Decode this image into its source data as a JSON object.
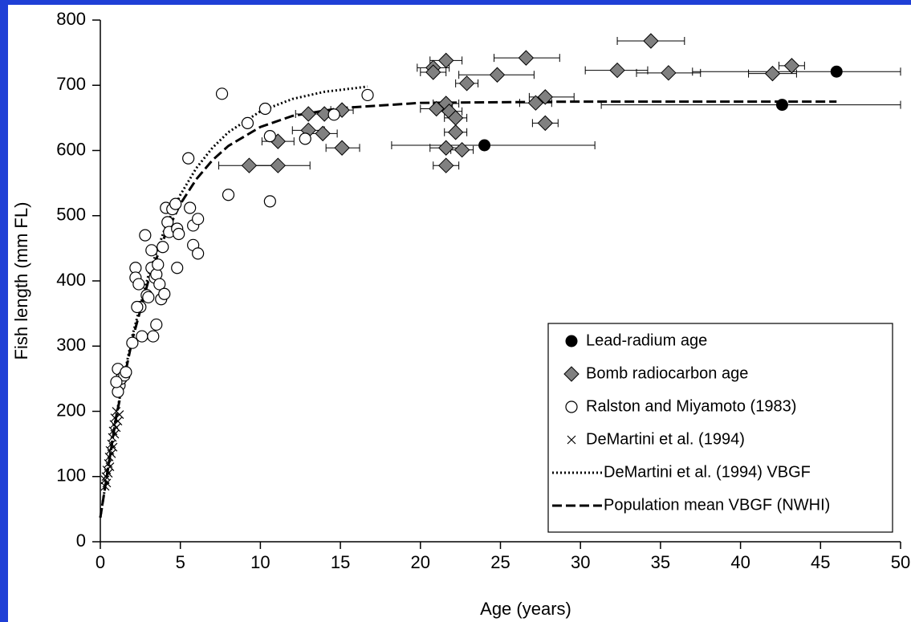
{
  "chart_data": {
    "type": "scatter",
    "x_label": "Age  (years)",
    "y_label": "Fish length (mm FL)",
    "xlim": [
      0,
      50
    ],
    "xticks": [
      0,
      5,
      10,
      15,
      20,
      25,
      30,
      35,
      40,
      45,
      50
    ],
    "ylim": [
      0,
      800
    ],
    "yticks": [
      0,
      100,
      200,
      300,
      400,
      500,
      600,
      700,
      800
    ],
    "legend": "lower right",
    "series": [
      {
        "name": "Lead-radium age",
        "marker": "circle-filled",
        "color": "#000000",
        "x": [
          24.0,
          42.6,
          46.0
        ],
        "values": [
          608,
          670,
          721
        ],
        "x_low": [
          18.2,
          31.3,
          37.0
        ],
        "x_high": [
          30.9,
          50,
          50
        ]
      },
      {
        "name": "Bomb radiocarbon age",
        "marker": "diamond",
        "color": "#808080",
        "x": [
          9.3,
          11.1,
          11.1,
          13.0,
          13.0,
          14.0,
          13.9,
          15.1,
          15.1,
          20.8,
          20.8,
          21.6,
          22.9,
          24.8,
          26.6,
          21.0,
          21.6,
          21.8,
          22.2,
          22.2,
          21.6,
          22.6,
          21.6,
          27.2,
          27.8,
          27.8,
          34.4,
          32.3,
          35.5,
          42.0,
          43.2
        ],
        "values": [
          577,
          577,
          614,
          656,
          631,
          656,
          626,
          662,
          604,
          727,
          720,
          738,
          703,
          716,
          742,
          664,
          672,
          660,
          650,
          628,
          604,
          601,
          577,
          673,
          682,
          642,
          768,
          723,
          719,
          718,
          730
        ],
        "x_low": [
          7.4,
          9.1,
          10.1,
          12.2,
          12.0,
          13.2,
          13.0,
          14.4,
          14.1,
          19.8,
          20.0,
          20.6,
          22.2,
          22.4,
          24.6,
          20.0,
          20.8,
          21.0,
          21.5,
          21.5,
          20.6,
          21.9,
          20.8,
          26.2,
          26.8,
          27.0,
          32.3,
          30.3,
          33.5,
          40.5,
          42.4
        ],
        "x_high": [
          11.2,
          13.1,
          12.1,
          13.8,
          14.0,
          14.8,
          14.8,
          15.8,
          16.2,
          21.8,
          21.6,
          22.6,
          23.6,
          27.1,
          28.7,
          22.0,
          22.4,
          22.6,
          22.9,
          22.9,
          22.6,
          23.3,
          22.4,
          28.2,
          29.6,
          28.6,
          36.5,
          34.2,
          37.5,
          43.5,
          44.0
        ]
      },
      {
        "name": "Ralston and Miyamoto (1983)",
        "marker": "circle-open",
        "color": "#000000",
        "x": [
          1.1,
          1.2,
          1.1,
          1.3,
          1.5,
          1.6,
          1.0,
          2.0,
          2.2,
          2.2,
          2.4,
          2.5,
          2.3,
          2.6,
          2.8,
          2.9,
          3.0,
          3.2,
          3.2,
          3.3,
          3.4,
          3.5,
          3.5,
          3.6,
          3.7,
          3.8,
          3.9,
          4.0,
          4.1,
          4.2,
          4.3,
          4.5,
          4.7,
          4.8,
          4.9,
          4.8,
          5.5,
          5.6,
          5.8,
          5.8,
          6.1,
          6.1,
          7.6,
          8.0,
          9.2,
          10.3,
          10.6,
          10.6,
          12.8,
          14.6,
          16.7
        ],
        "values": [
          265,
          240,
          230,
          250,
          255,
          260,
          245,
          305,
          420,
          405,
          395,
          360,
          360,
          315,
          470,
          378,
          375,
          447,
          420,
          315,
          405,
          333,
          410,
          425,
          395,
          372,
          452,
          380,
          512,
          490,
          475,
          510,
          518,
          480,
          472,
          420,
          588,
          512,
          485,
          455,
          442,
          495,
          687,
          532,
          642,
          664,
          622,
          522,
          618,
          655,
          685
        ]
      },
      {
        "name": "DeMartini et al. (1994)",
        "marker": "x",
        "color": "#000000",
        "x": [
          0.3,
          0.3,
          0.35,
          0.4,
          0.4,
          0.5,
          0.5,
          0.55,
          0.6,
          0.6,
          0.7,
          0.7,
          0.75,
          0.8,
          0.8,
          0.85,
          0.9,
          0.9,
          1.0,
          1.0,
          1.1,
          1.2
        ],
        "values": [
          85,
          95,
          100,
          110,
          90,
          120,
          105,
          130,
          140,
          115,
          150,
          135,
          160,
          170,
          145,
          180,
          165,
          190,
          175,
          200,
          185,
          195
        ]
      },
      {
        "name": "DeMartini et al. (1994) VBGF",
        "line": "dotted",
        "color": "#000000",
        "x": [
          0,
          1,
          2,
          3,
          4,
          5,
          6,
          7,
          8,
          10,
          12,
          14,
          16.7
        ],
        "values": [
          37,
          195,
          316,
          408,
          478,
          532,
          573,
          604,
          628,
          660,
          679,
          690,
          698
        ]
      },
      {
        "name": "Population mean VBGF (NWHI)",
        "line": "dashed",
        "color": "#000000",
        "x": [
          0,
          1,
          2,
          3,
          4,
          5,
          6,
          7,
          8,
          10,
          12,
          15,
          20,
          30,
          46
        ],
        "values": [
          37,
          193,
          310,
          400,
          467,
          518,
          556,
          585,
          607,
          636,
          653,
          665,
          673,
          675,
          675
        ]
      }
    ]
  }
}
